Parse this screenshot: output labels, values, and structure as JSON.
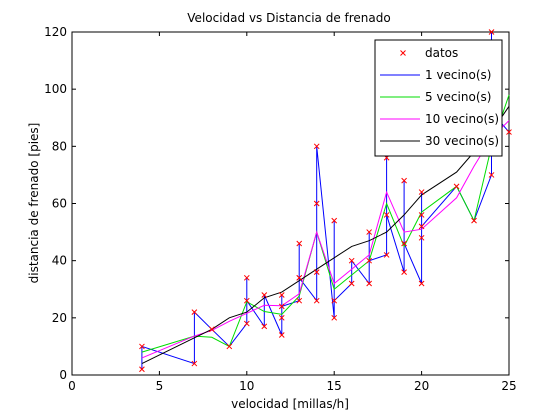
{
  "chart_data": {
    "type": "line",
    "title": "Velocidad vs Distancia de frenado",
    "xlabel": "velocidad [millas/h]",
    "ylabel": "distancia de frenado [pies]",
    "xlim": [
      0,
      25
    ],
    "ylim": [
      0,
      120
    ],
    "xticks": [
      0,
      5,
      10,
      15,
      20,
      25
    ],
    "yticks": [
      0,
      20,
      40,
      60,
      80,
      100,
      120
    ],
    "grid": false,
    "legend_position": "top-right",
    "scatter": {
      "name": "datos",
      "color": "#ff0000",
      "marker": "x",
      "x": [
        4,
        4,
        7,
        7,
        8,
        9,
        10,
        10,
        10,
        11,
        11,
        12,
        12,
        12,
        12,
        13,
        13,
        13,
        13,
        14,
        14,
        14,
        14,
        15,
        15,
        15,
        16,
        16,
        17,
        17,
        17,
        18,
        18,
        18,
        18,
        19,
        19,
        19,
        20,
        20,
        20,
        20,
        20,
        22,
        23,
        24,
        24,
        24,
        24,
        25
      ],
      "y": [
        2,
        10,
        4,
        22,
        16,
        10,
        18,
        26,
        34,
        17,
        28,
        14,
        20,
        24,
        28,
        26,
        34,
        34,
        46,
        26,
        36,
        60,
        80,
        20,
        26,
        54,
        32,
        40,
        32,
        40,
        50,
        42,
        56,
        76,
        84,
        36,
        46,
        68,
        32,
        48,
        52,
        56,
        64,
        66,
        54,
        70,
        92,
        93,
        120,
        85
      ]
    },
    "series": [
      {
        "name": "1 vecino(s)",
        "color": "#0000ff",
        "x": [
          4,
          4,
          7,
          7,
          8,
          9,
          10,
          10,
          10,
          11,
          11,
          12,
          12,
          12,
          12,
          13,
          13,
          13,
          13,
          14,
          14,
          14,
          14,
          15,
          15,
          15,
          16,
          16,
          17,
          17,
          17,
          18,
          18,
          18,
          18,
          19,
          19,
          19,
          20,
          20,
          20,
          20,
          20,
          22,
          23,
          24,
          24,
          24,
          24,
          25
        ],
        "y": [
          2,
          10,
          4,
          22,
          16,
          10,
          18,
          34,
          26,
          17,
          28,
          14,
          28,
          20,
          24,
          26,
          46,
          34,
          34,
          26,
          60,
          36,
          80,
          20,
          54,
          26,
          32,
          40,
          32,
          50,
          40,
          42,
          84,
          76,
          56,
          36,
          68,
          46,
          32,
          56,
          64,
          48,
          52,
          66,
          54,
          70,
          93,
          120,
          92,
          85
        ]
      },
      {
        "name": "5 vecino(s)",
        "color": "#00dd00",
        "x": [
          4,
          7,
          8,
          9,
          10,
          11,
          12,
          13,
          14,
          15,
          16,
          17,
          18,
          19,
          20,
          22,
          23,
          24,
          25
        ],
        "y": [
          8,
          13.6,
          13.2,
          10,
          25.6,
          22.2,
          21.2,
          27.6,
          50,
          30,
          35,
          40,
          60,
          45,
          57,
          66,
          54,
          80,
          98
        ]
      },
      {
        "name": "10 vecino(s)",
        "color": "#ff00ff",
        "x": [
          4,
          7,
          8,
          9,
          10,
          11,
          12,
          13,
          14,
          15,
          16,
          17,
          18,
          19,
          20,
          22,
          23,
          24,
          25
        ],
        "y": [
          6,
          13.6,
          15.6,
          18.8,
          21.6,
          24.4,
          24.2,
          28.4,
          50,
          32,
          37,
          42,
          64,
          50,
          51,
          62,
          73,
          83,
          89
        ]
      },
      {
        "name": "30 vecino(s)",
        "color": "#000000",
        "x": [
          4,
          7,
          8,
          9,
          10,
          11,
          12,
          13,
          14,
          15,
          16,
          17,
          18,
          19,
          20,
          22,
          23,
          24,
          25
        ],
        "y": [
          4,
          13,
          16,
          20,
          22,
          27,
          29,
          33,
          37,
          41,
          45,
          47,
          50,
          56,
          63,
          71,
          78,
          85,
          94
        ]
      }
    ]
  }
}
